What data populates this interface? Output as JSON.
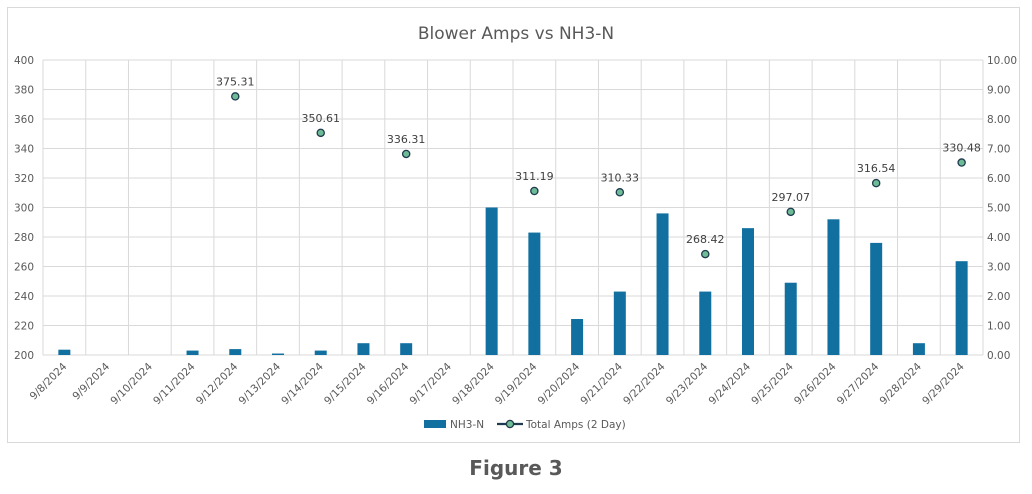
{
  "caption": "Figure 3",
  "chart_data": {
    "type": "bar",
    "title": "Blower Amps vs NH3-N",
    "categories": [
      "9/8/2024",
      "9/9/2024",
      "9/10/2024",
      "9/11/2024",
      "9/12/2024",
      "9/13/2024",
      "9/14/2024",
      "9/15/2024",
      "9/16/2024",
      "9/17/2024",
      "9/18/2024",
      "9/19/2024",
      "9/20/2024",
      "9/21/2024",
      "9/22/2024",
      "9/23/2024",
      "9/24/2024",
      "9/25/2024",
      "9/26/2024",
      "9/27/2024",
      "9/28/2024",
      "9/29/2024"
    ],
    "series": [
      {
        "name": "NH3-N",
        "type": "bar",
        "axis": "right",
        "color": "#1170a0",
        "values": [
          0.18,
          null,
          null,
          0.15,
          0.2,
          0.05,
          0.15,
          0.4,
          0.4,
          null,
          5.0,
          4.15,
          1.22,
          2.15,
          4.8,
          2.15,
          4.3,
          2.45,
          4.6,
          3.8,
          0.4,
          3.18
        ]
      },
      {
        "name": "Total Amps (2 Day)",
        "type": "scatter",
        "axis": "left",
        "color": "#6dbb97",
        "edge_color": "#1f3b4d",
        "values": [
          null,
          null,
          null,
          null,
          375.31,
          null,
          350.61,
          null,
          336.31,
          null,
          null,
          311.19,
          null,
          310.33,
          null,
          268.42,
          null,
          297.07,
          null,
          316.54,
          null,
          330.48
        ],
        "labels": [
          null,
          null,
          null,
          null,
          "375.31",
          null,
          "350.61",
          null,
          "336.31",
          null,
          null,
          "311.19",
          null,
          "310.33",
          null,
          "268.42",
          null,
          "297.07",
          null,
          "316.54",
          null,
          "330.48"
        ]
      }
    ],
    "y_left": {
      "min": 200,
      "max": 400,
      "step": 20,
      "ticks": [
        "200",
        "220",
        "240",
        "260",
        "280",
        "300",
        "320",
        "340",
        "360",
        "380",
        "400"
      ]
    },
    "y_right": {
      "min": 0,
      "max": 10,
      "step": 1,
      "ticks": [
        "0.00",
        "1.00",
        "2.00",
        "3.00",
        "4.00",
        "5.00",
        "6.00",
        "7.00",
        "8.00",
        "9.00",
        "10.00"
      ]
    },
    "grid": true,
    "legend_position": "bottom"
  }
}
